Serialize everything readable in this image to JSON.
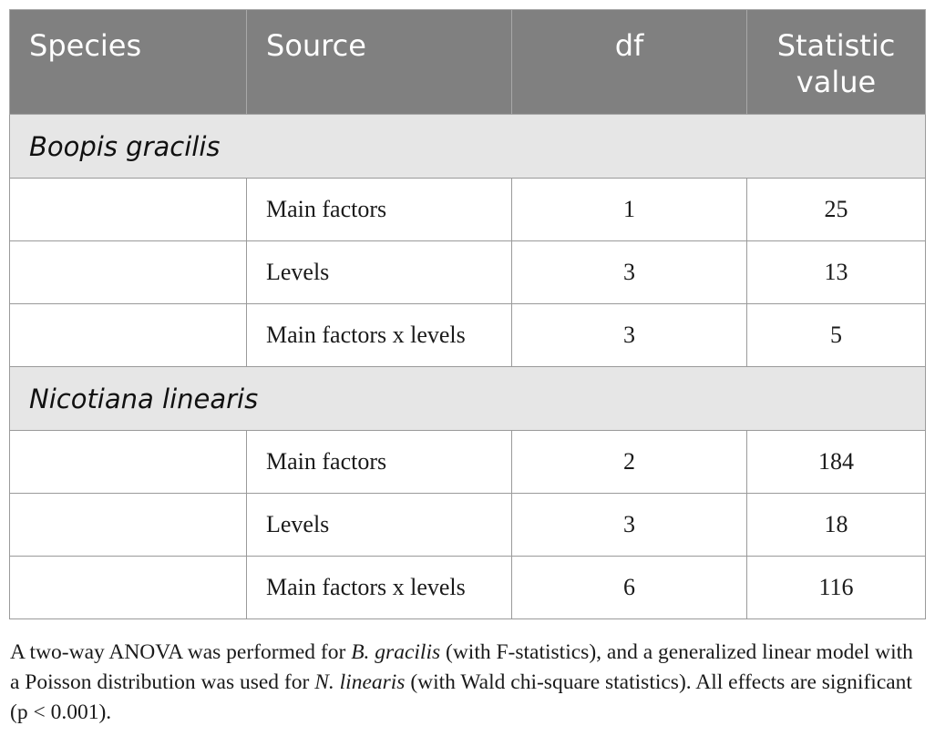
{
  "table": {
    "headers": {
      "species": "Species",
      "source": "Source",
      "df": "df",
      "statistic_line1": "Statistic",
      "statistic_line2": "value"
    },
    "groups": [
      {
        "species": "Boopis gracilis",
        "rows": [
          {
            "source": "Main factors",
            "df": "1",
            "statistic": "25"
          },
          {
            "source": "Levels",
            "df": "3",
            "statistic": "13"
          },
          {
            "source": "Main factors x levels",
            "df": "3",
            "statistic": "5"
          }
        ]
      },
      {
        "species": "Nicotiana linearis",
        "rows": [
          {
            "source": "Main factors",
            "df": "2",
            "statistic": "184"
          },
          {
            "source": "Levels",
            "df": "3",
            "statistic": "18"
          },
          {
            "source": "Main factors x levels",
            "df": "6",
            "statistic": "116"
          }
        ]
      }
    ]
  },
  "footnote": {
    "part1": "A two-way ANOVA was performed for ",
    "species1": "B. gracilis",
    "part2": " (with F-statistics), and a generalized linear model with a Poisson distribution was used for ",
    "species2": "N. linearis",
    "part3": " (with Wald chi-square statistics). All effects are significant (p < 0.001)."
  },
  "colors": {
    "header_bg": "#808080",
    "group_bg": "#e6e6e6",
    "border": "#9a9a9a"
  }
}
